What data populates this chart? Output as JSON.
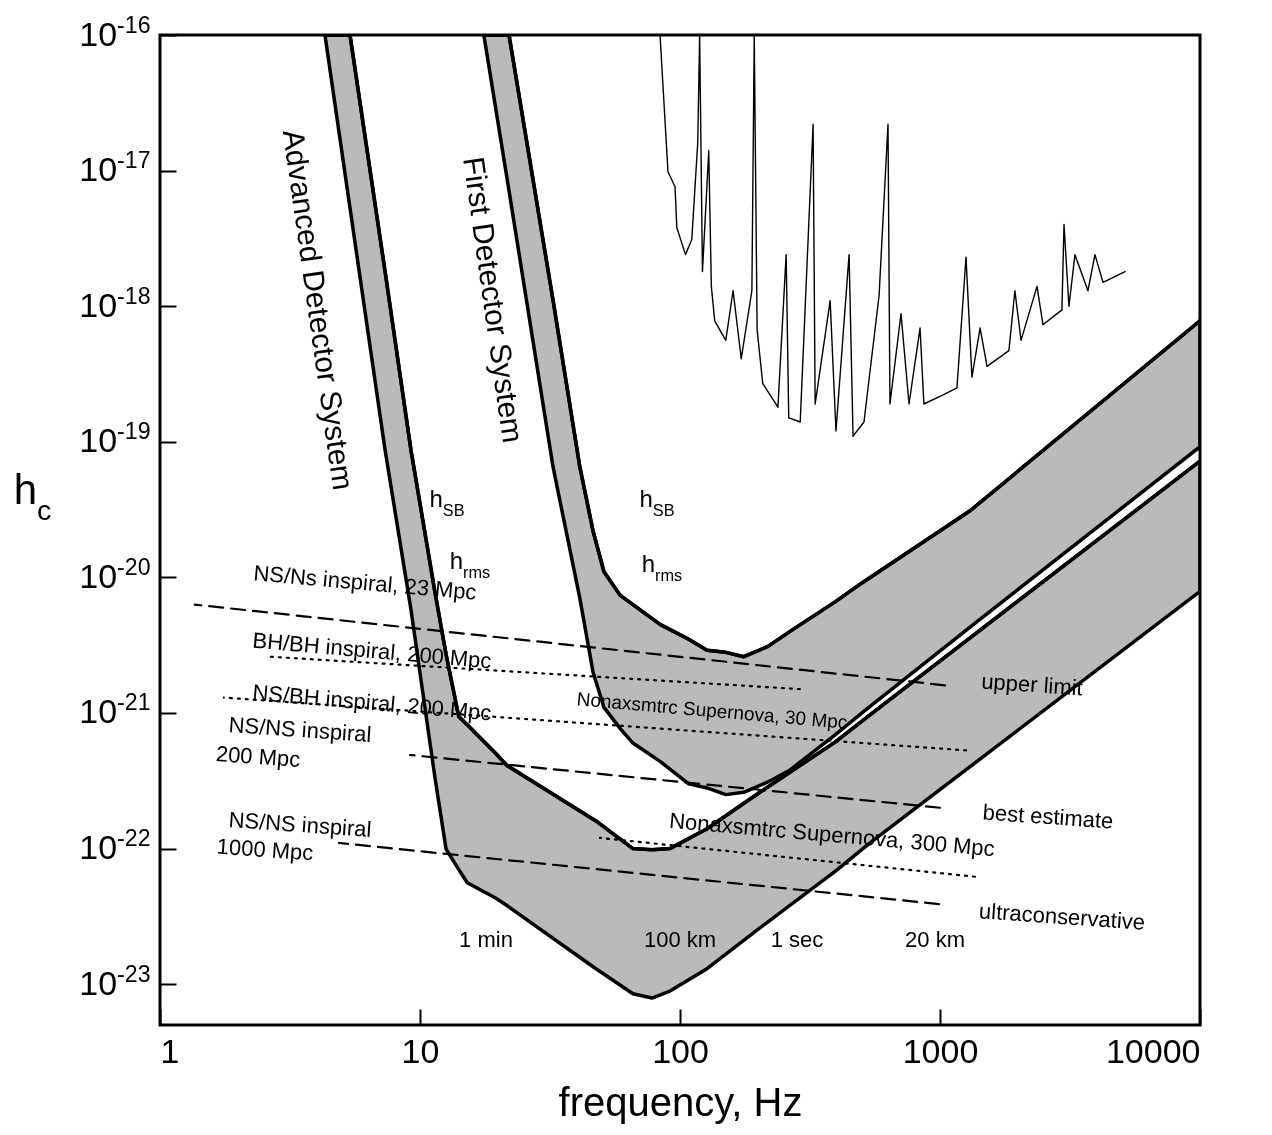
{
  "chart_data": {
    "type": "line",
    "xlabel": "frequency, Hz",
    "ylabel": "h$_{c}$",
    "log": "xy",
    "xlim": [
      1,
      10000
    ],
    "xticks": [
      1,
      10,
      100,
      1000,
      10000
    ],
    "ylim": [
      5e-24,
      1e-16
    ],
    "yticks": [
      {
        "value": 1e-23,
        "label": "10$^{-23}$"
      },
      {
        "value": 1e-22,
        "label": "10$^{-22}$"
      },
      {
        "value": 1e-21,
        "label": "10$^{-21}$"
      },
      {
        "value": 1e-20,
        "label": "10$^{-20}$"
      },
      {
        "value": 1e-19,
        "label": "10$^{-19}$"
      },
      {
        "value": 1e-18,
        "label": "10$^{-18}$"
      },
      {
        "value": 1e-17,
        "label": "10$^{-17}$"
      },
      {
        "value": 1e-16,
        "label": "10$^{-16}$"
      }
    ],
    "series": [
      {
        "color": "#000000",
        "x": [
          4.31,
          5.38,
          7.34,
          9.23,
          11.4,
          12.6,
          14.1,
          15.2,
          19.6,
          21.6,
          47.5,
          65.9,
          78.0,
          91.5,
          127,
          203,
          395,
          538,
          10000
        ],
        "values": [
          1e-16,
          1e-16,
          1.8e-18,
          8.7e-20,
          7.9e-21,
          2.7e-21,
          9.4e-22,
          8.2e-22,
          5e-22,
          4.1e-22,
          1.6e-22,
          1e-22,
          9.8e-23,
          1e-22,
          1.4e-22,
          2.6e-22,
          6.1e-22,
          9.7e-22,
          7.2e-20
        ],
        "upper": [
          1e-16,
          1e-16,
          1.8e-18,
          8.7e-20,
          7.9e-21,
          2.7e-21,
          9.4e-22,
          8.2e-22,
          5e-22,
          4.1e-22,
          1.6e-22,
          1e-22,
          9.8e-23,
          1e-22,
          1.4e-22,
          2.6e-22,
          6.1e-22,
          9.7e-22,
          7.2e-20
        ],
        "lower": [
          1e-16,
          5.3e-18,
          8.7e-20,
          5.8e-21,
          3.4e-22,
          9.9e-23,
          7e-23,
          5.6e-23,
          4.3e-23,
          3.8e-23,
          1.3e-23,
          8.5e-24,
          7.9e-24,
          8.9e-24,
          1.3e-23,
          2.6e-23,
          6.8e-23,
          1.1e-22,
          7.9e-21
        ]
      },
      {
        "color": "#000000",
        "x": [
          17.6,
          22.0,
          32.5,
          41.2,
          46.3,
          51.0,
          58.8,
          65.9,
          83.8,
          108,
          127,
          150,
          176,
          218,
          265,
          395,
          501,
          1305,
          10000
        ],
        "values": [
          1e-16,
          1e-16,
          1.1e-18,
          6.5e-20,
          2.2e-20,
          1.1e-20,
          7.4e-21,
          6.3e-21,
          4.5e-21,
          3.5e-21,
          2.9e-21,
          2.8e-21,
          2.6e-21,
          3.1e-21,
          4e-21,
          6.6e-21,
          9.1e-21,
          3.1e-20,
          7.8e-19
        ],
        "upper": [
          1e-16,
          1e-16,
          1.1e-18,
          6.5e-20,
          2.2e-20,
          1.1e-20,
          7.4e-21,
          6.3e-21,
          4.5e-21,
          3.5e-21,
          2.9e-21,
          2.8e-21,
          2.6e-21,
          3.1e-21,
          4e-21,
          6.6e-21,
          9.1e-21,
          3.1e-20,
          7.8e-19
        ],
        "lower": [
          1e-16,
          7.1e-18,
          6.5e-20,
          7e-21,
          2e-21,
          1.1e-21,
          7.7e-22,
          6e-22,
          4.4e-22,
          3e-22,
          2.8e-22,
          2.5e-22,
          2.6e-22,
          3.1e-22,
          3.8e-22,
          6.9e-22,
          1e-21,
          4.3e-21,
          9.2e-20
        ]
      },
      {
        "color": "#000000",
        "x": [
          83.8,
          89.9,
          95.7,
          97.2,
          105,
          111,
          117,
          119,
          122,
          129,
          132,
          136,
          150,
          160,
          172,
          189,
          193,
          198,
          208,
          238,
          256,
          262,
          290,
          325,
          331,
          378,
          398,
          447,
          463,
          510,
          583,
          631,
          642,
          708,
          760,
          838,
          867,
          1018,
          1162,
          1259,
          1327,
          1426,
          1517,
          1841,
          1941,
          2050,
          2361,
          2489,
          2944,
          2999,
          3133,
          3304,
          3707,
          3945,
          4236,
          5152
        ],
        "values": [
          1e-16,
          9.8e-18,
          7.6e-18,
          3.8e-18,
          2.4e-18,
          3.1e-18,
          1.6e-17,
          1e-16,
          1.8e-18,
          1.4e-17,
          1.4e-18,
          7.8e-19,
          5.6e-19,
          1.3e-18,
          4.1e-19,
          1.3e-18,
          1e-16,
          6.7e-19,
          2.7e-19,
          1.8e-19,
          2.4e-18,
          1.5e-19,
          1.4e-19,
          2.2e-17,
          1.9e-19,
          1.1e-18,
          1.2e-19,
          2.4e-18,
          1.1e-19,
          1.4e-19,
          1.2e-18,
          2.2e-17,
          1.9e-19,
          8.8e-19,
          1.9e-19,
          6.9e-19,
          1.9e-19,
          2.2e-19,
          2.5e-19,
          2.3e-18,
          3e-19,
          6.9e-19,
          3.6e-19,
          4.7e-19,
          1.3e-18,
          5.6e-19,
          1.4e-18,
          7.3e-19,
          9.4e-19,
          4e-18,
          1e-18,
          2.4e-18,
          1.3e-18,
          2.4e-18,
          1.5e-18,
          1.8e-18
        ]
      },
      {
        "color": "#000000",
        "line_style": "dashed",
        "x": [
          1.36,
          1045
        ],
        "values": [
          6.3e-21,
          1.6e-21
        ]
      },
      {
        "color": "#000000",
        "line_style": "dotted",
        "x": [
          2.65,
          289
        ],
        "values": [
          2.6e-21,
          1.5e-21
        ]
      },
      {
        "color": "#000000",
        "line_style": "dotted",
        "x": [
          1.76,
          1259
        ],
        "values": [
          1.3e-21,
          5.3e-22
        ]
      },
      {
        "color": "#000000",
        "line_style": "dashed",
        "x": [
          9.15,
          1000
        ],
        "values": [
          4.9e-22,
          2e-22
        ]
      },
      {
        "color": "#000000",
        "line_style": "dotted",
        "x": [
          49.2,
          1363
        ],
        "values": [
          1.2e-22,
          6.2e-23
        ]
      },
      {
        "color": "#000000",
        "line_style": "dashed",
        "x": [
          4.88,
          991
        ],
        "values": [
          1.1e-22,
          3.9e-23
        ]
      }
    ],
    "annotations": [
      "Advanced Detector System",
      "First Detector System",
      "h$_{SB}$",
      "h$_{rms}$",
      "h$_{SB}$",
      "h$_{rms}$",
      "NS/Ns inspiral, 23 Mpc",
      "BH/BH inspiral, 200 Mpc",
      "NS/BH inspiral, 200 Mpc",
      "NS/NS inspiral",
      "200 Mpc",
      "NS/NS inspiral",
      "1000 Mpc",
      "upper limit",
      "Nonaxsmtrc Supernova, 30 Mpc",
      "best estimate",
      "Nonaxsmtrc Supernova, 300 Mpc",
      "ultraconservative",
      "1 min",
      "100 km",
      "1 sec",
      "20 km"
    ]
  }
}
